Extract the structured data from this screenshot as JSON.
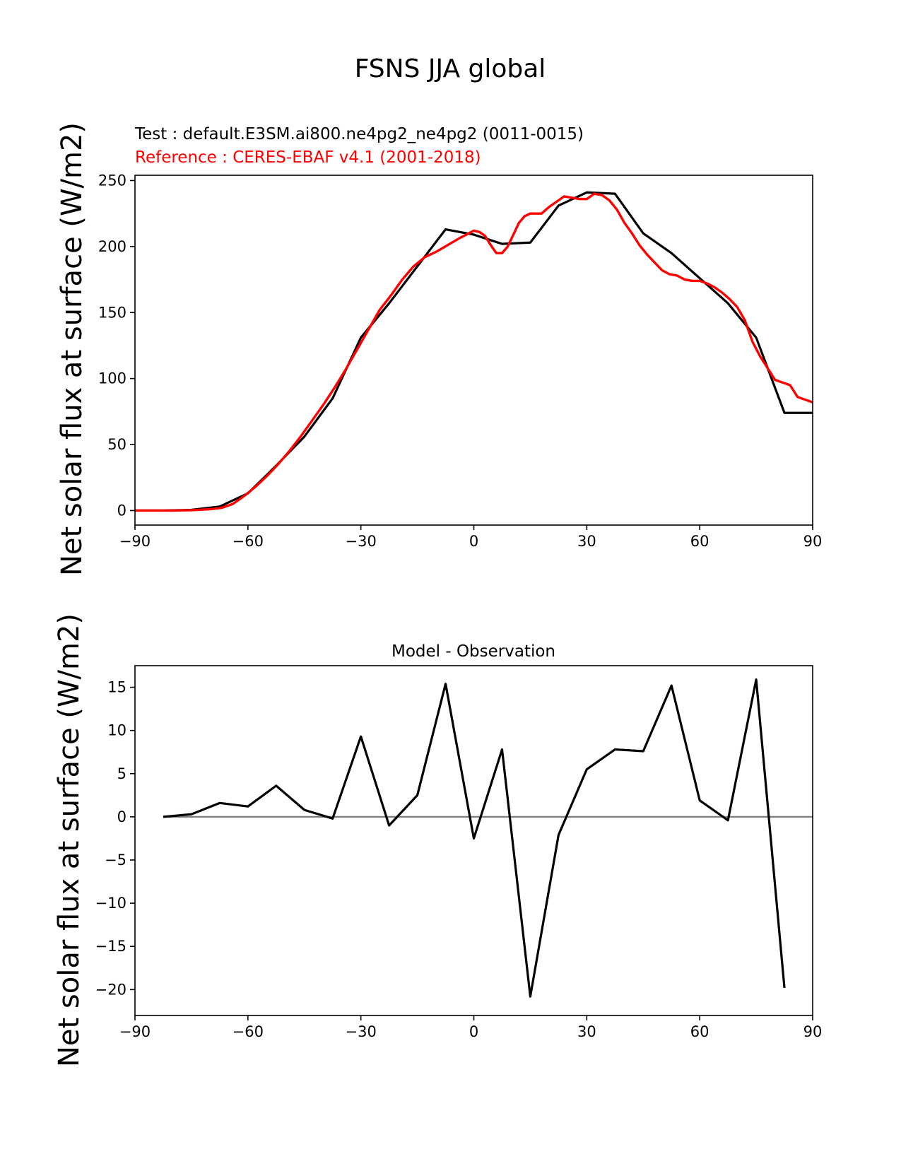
{
  "figure": {
    "title": "FSNS JJA global"
  },
  "chart_data": [
    {
      "type": "line",
      "test_label": "Test : default.E3SM.ai800.ne4pg2_ne4pg2 (0011-0015)",
      "reference_label": "Reference : CERES-EBAF v4.1 (2001-2018)",
      "ylabel": "Net solar flux at surface (W/m2)",
      "xlabel": "",
      "xlim": [
        -90,
        90
      ],
      "ylim": [
        -11,
        254
      ],
      "xticks": [
        "−90",
        "−60",
        "−30",
        "0",
        "30",
        "60",
        "90"
      ],
      "yticks": [
        "0",
        "50",
        "100",
        "150",
        "200",
        "250"
      ],
      "grid": false,
      "series": [
        {
          "color": "#000000",
          "x": [
            -90,
            -82.5,
            -75,
            -67.5,
            -60,
            -52.5,
            -45,
            -37.5,
            -30,
            -22.5,
            -15,
            -7.5,
            0,
            7.5,
            15,
            22.5,
            30,
            37.5,
            45,
            52.5,
            60,
            67.5,
            75,
            82.5,
            90
          ],
          "y": [
            0,
            0,
            0.5,
            3,
            13,
            34,
            56,
            85,
            131,
            157,
            185,
            213,
            209,
            202,
            203,
            231,
            241,
            240,
            210,
            195,
            176,
            157,
            131,
            74,
            74
          ]
        },
        {
          "color": "#ff0000",
          "x": [
            -90,
            -85,
            -80,
            -75,
            -70,
            -67,
            -64,
            -61,
            -58,
            -55,
            -52,
            -49,
            -46,
            -43,
            -40,
            -37,
            -34,
            -31,
            -28,
            -25,
            -22,
            -19,
            -16,
            -13,
            -10,
            -7,
            -4,
            -2,
            0,
            1.5,
            3,
            4.5,
            6,
            7.5,
            9,
            10.5,
            12,
            13.5,
            15,
            16.5,
            18,
            20,
            22,
            24,
            26,
            28,
            30,
            32,
            34,
            36,
            38,
            40,
            42,
            44,
            46,
            48,
            50,
            52,
            54,
            56,
            58,
            60,
            62,
            64,
            66,
            68,
            70,
            72,
            74,
            76,
            78,
            80,
            82,
            84,
            86,
            88,
            90
          ],
          "y": [
            0,
            0,
            0,
            0.3,
            1,
            2,
            5,
            11,
            18,
            26,
            35,
            45,
            56,
            68,
            80,
            93,
            107,
            122,
            137,
            152,
            163,
            175,
            185,
            192,
            196,
            201,
            206,
            209,
            212,
            211,
            208,
            201,
            195,
            195,
            200,
            209,
            218,
            223,
            225,
            225,
            225,
            230,
            234,
            238,
            237,
            236,
            236,
            240,
            239,
            235,
            228,
            218,
            210,
            201,
            194,
            188,
            182,
            179,
            178,
            175,
            174,
            174,
            172,
            169,
            165,
            160,
            154,
            144,
            128,
            117,
            108,
            99,
            97,
            95,
            86,
            84,
            82
          ]
        }
      ]
    },
    {
      "type": "line",
      "title": "Model - Observation",
      "ylabel": "Net solar flux at surface (W/m2)",
      "xlabel": "",
      "xlim": [
        -90,
        90
      ],
      "ylim": [
        -23,
        17.5
      ],
      "xticks": [
        "−90",
        "−60",
        "−30",
        "0",
        "30",
        "60",
        "90"
      ],
      "yticks": [
        "15",
        "10",
        "5",
        "0",
        "−5",
        "−10",
        "−15",
        "−20"
      ],
      "grid": false,
      "zero_line_color": "#808080",
      "series": [
        {
          "color": "#000000",
          "x": [
            -82.5,
            -75,
            -67.5,
            -60,
            -52.5,
            -45,
            -37.5,
            -30,
            -22.5,
            -15,
            -7.5,
            0,
            7.5,
            15,
            22.5,
            30,
            37.5,
            45,
            52.5,
            60,
            67.5,
            75,
            82.5
          ],
          "y": [
            0,
            0.3,
            1.6,
            1.2,
            3.6,
            0.8,
            -0.2,
            9.3,
            -1.0,
            2.5,
            15.4,
            -2.5,
            7.8,
            -20.8,
            -2.1,
            5.5,
            7.8,
            7.6,
            15.2,
            1.9,
            -0.4,
            15.9,
            -19.8
          ]
        }
      ]
    }
  ]
}
